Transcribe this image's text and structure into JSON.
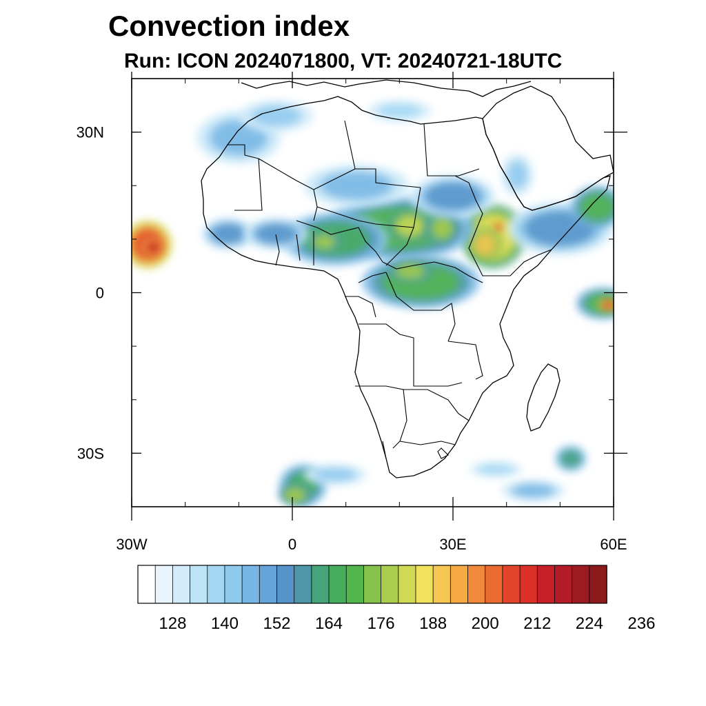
{
  "title": "Convection index",
  "subtitle": "Run: ICON 2024071800,  VT: 20240721-18UTC",
  "map": {
    "region": "Africa",
    "lon_range": [
      -30,
      60
    ],
    "lat_range": [
      -40,
      40
    ],
    "lat_ticks": [
      {
        "lat": 30,
        "label": "30N"
      },
      {
        "lat": 0,
        "label": "0"
      },
      {
        "lat": -30,
        "label": "30S"
      }
    ],
    "lon_ticks": [
      {
        "lon": -30,
        "label": "30W"
      },
      {
        "lon": 0,
        "label": "0"
      },
      {
        "lon": 30,
        "label": "30E"
      },
      {
        "lon": 60,
        "label": "60E"
      }
    ]
  },
  "colorbar": {
    "colors": [
      "#ffffff",
      "#e8f5fc",
      "#d2ecf9",
      "#bde3f7",
      "#a3d7f4",
      "#8ec9ee",
      "#78b7e5",
      "#64a4da",
      "#5593c9",
      "#4d97a6",
      "#46a47a",
      "#45ad5c",
      "#52b64d",
      "#86c34d",
      "#abcd4e",
      "#cfd954",
      "#f0e35b",
      "#f5c651",
      "#f4a945",
      "#f08a3a",
      "#eb6a30",
      "#e2462a",
      "#da3027",
      "#c71f27",
      "#b31b26",
      "#9c1a22",
      "#8a1a1c"
    ],
    "labels": [
      "128",
      "140",
      "152",
      "164",
      "176",
      "188",
      "200",
      "212",
      "224",
      "236"
    ]
  },
  "field": {
    "variable": "Convection index",
    "blobs": [
      {
        "lon": -27,
        "lat": 9,
        "rx": 4.5,
        "ry": 4.5,
        "level": 21
      },
      {
        "lon": -26,
        "lat": 8.5,
        "rx": 2.2,
        "ry": 1.8,
        "level": 23
      },
      {
        "lon": 37.5,
        "lat": 10.5,
        "rx": 6,
        "ry": 6,
        "level": 16
      },
      {
        "lon": 38.5,
        "lat": 12.2,
        "rx": 1.2,
        "ry": 1.0,
        "level": 22
      },
      {
        "lon": 36,
        "lat": 9,
        "rx": 3,
        "ry": 3,
        "level": 17
      },
      {
        "lon": 20,
        "lat": 12,
        "rx": 14,
        "ry": 6,
        "level": 12
      },
      {
        "lon": 22,
        "lat": 12.5,
        "rx": 4,
        "ry": 3,
        "level": 15
      },
      {
        "lon": 28,
        "lat": 12,
        "rx": 3,
        "ry": 3,
        "level": 14
      },
      {
        "lon": 8,
        "lat": 10,
        "rx": 10,
        "ry": 5,
        "level": 11
      },
      {
        "lon": 6,
        "lat": 9.5,
        "rx": 3,
        "ry": 2,
        "level": 14
      },
      {
        "lon": 24,
        "lat": 2,
        "rx": 11,
        "ry": 5,
        "level": 12
      },
      {
        "lon": 22,
        "lat": 4,
        "rx": 4,
        "ry": 2,
        "level": 14
      },
      {
        "lon": -12,
        "lat": 11,
        "rx": 5,
        "ry": 3,
        "level": 8
      },
      {
        "lon": -3,
        "lat": 11,
        "rx": 6,
        "ry": 3,
        "level": 8
      },
      {
        "lon": 12,
        "lat": 20,
        "rx": 10,
        "ry": 4,
        "level": 6
      },
      {
        "lon": 30,
        "lat": 18,
        "rx": 8,
        "ry": 4,
        "level": 8
      },
      {
        "lon": 50,
        "lat": 12,
        "rx": 10,
        "ry": 5,
        "level": 8
      },
      {
        "lon": 57,
        "lat": 16,
        "rx": 5,
        "ry": 4,
        "level": 12
      },
      {
        "lon": -10,
        "lat": 29,
        "rx": 8,
        "ry": 5,
        "level": 6
      },
      {
        "lon": -3,
        "lat": 33,
        "rx": 7,
        "ry": 3,
        "level": 5
      },
      {
        "lon": 20,
        "lat": 34,
        "rx": 6,
        "ry": 2,
        "level": 4
      },
      {
        "lon": 42,
        "lat": 22,
        "rx": 3,
        "ry": 4,
        "level": 5
      },
      {
        "lon": 58,
        "lat": -2,
        "rx": 5,
        "ry": 3,
        "level": 12
      },
      {
        "lon": 59,
        "lat": -2.3,
        "rx": 2,
        "ry": 1.3,
        "level": 21
      },
      {
        "lon": 2,
        "lat": -36,
        "rx": 4.5,
        "ry": 4,
        "level": 11
      },
      {
        "lon": 0.5,
        "lat": -37.8,
        "rx": 3,
        "ry": 2,
        "level": 14
      },
      {
        "lon": 8,
        "lat": -34,
        "rx": 6,
        "ry": 2,
        "level": 5
      },
      {
        "lon": 52,
        "lat": -31,
        "rx": 3,
        "ry": 2.5,
        "level": 10
      },
      {
        "lon": 45,
        "lat": -37,
        "rx": 6,
        "ry": 2,
        "level": 6
      },
      {
        "lon": 38,
        "lat": -33,
        "rx": 5,
        "ry": 1.5,
        "level": 4
      }
    ]
  }
}
